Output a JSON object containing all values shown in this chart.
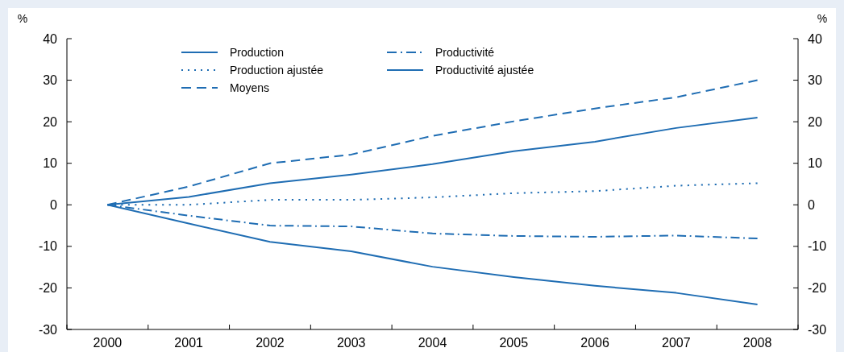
{
  "chart_data": {
    "type": "line",
    "ylabel": "%",
    "y2label": "%",
    "categories": [
      "2000",
      "2001",
      "2002",
      "2003",
      "2004",
      "2005",
      "2006",
      "2007",
      "2008"
    ],
    "series": [
      {
        "name": "Production",
        "color": "#1f6db3",
        "line_style": "solid",
        "values": [
          0,
          1.9,
          5.2,
          7.3,
          9.8,
          12.9,
          15.2,
          18.5,
          21
        ]
      },
      {
        "name": "Production ajustée",
        "color": "#1f6db3",
        "line_style": "dotted",
        "values": [
          0,
          0,
          1.2,
          1.2,
          1.8,
          2.8,
          3.3,
          4.6,
          5.2
        ]
      },
      {
        "name": "Moyens",
        "color": "#1f6db3",
        "line_style": "dashed",
        "values": [
          0,
          4.4,
          10,
          12.1,
          16.6,
          20.1,
          23.2,
          25.9,
          30
        ]
      },
      {
        "name": "Productivité",
        "color": "#1f6db3",
        "line_style": "dashdot",
        "values": [
          0,
          -2.6,
          -5,
          -5.2,
          -6.9,
          -7.5,
          -7.7,
          -7.4,
          -8.1
        ]
      },
      {
        "name": "Productivité ajustée",
        "color": "#1f6db3",
        "line_style": "solid",
        "values": [
          0,
          -4.5,
          -8.9,
          -11.2,
          -14.9,
          -17.4,
          -19.5,
          -21.2,
          -24
        ]
      }
    ],
    "ylim": [
      -30,
      40
    ],
    "yticks": [
      -30,
      -20,
      -10,
      0,
      10,
      20,
      30,
      40
    ],
    "y2lim": [
      -30,
      40
    ],
    "y2ticks": [
      -30,
      -20,
      -10,
      0,
      10,
      20,
      30,
      40
    ],
    "grid": false,
    "legend": "top"
  }
}
